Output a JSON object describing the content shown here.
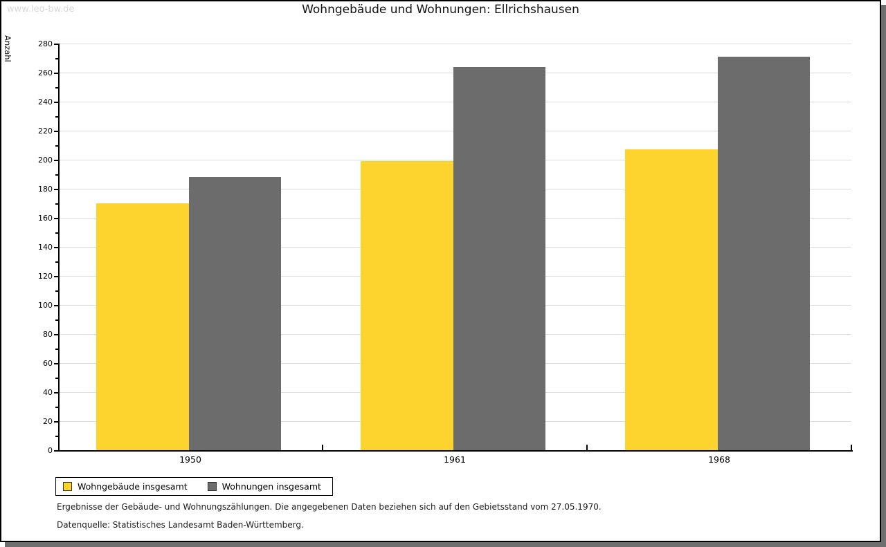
{
  "watermark": "www.leo-bw.de",
  "title": "Wohngebäude und Wohnungen: Ellrichshausen",
  "chart_data": {
    "type": "bar",
    "title": "Wohngebäude und Wohnungen: Ellrichshausen",
    "ylabel": "Anzahl",
    "xlabel": "",
    "categories": [
      "1950",
      "1961",
      "1968"
    ],
    "series": [
      {
        "name": "Wohngebäude insgesamt",
        "color": "#FDD32E",
        "values": [
          170,
          199,
          207
        ]
      },
      {
        "name": "Wohnungen insgesamt",
        "color": "#6C6C6C",
        "values": [
          188,
          264,
          271
        ]
      }
    ],
    "ylim": [
      0,
      280
    ],
    "ytick_step": 20,
    "ytick_minor_step": 10,
    "grid": true,
    "legend_position": "bottom-left"
  },
  "footnotes": {
    "line1": "Ergebnisse der Gebäude- und Wohnungszählungen. Die angegebenen Daten beziehen sich auf den Gebietsstand vom 27.05.1970.",
    "line2": "Datenquelle: Statistisches Landesamt Baden-Württemberg."
  },
  "colors": {
    "series1": "#FDD32E",
    "series2": "#6C6C6C",
    "gridline": "#DCDCDC",
    "shadow": "#6F6F6F",
    "watermark": "#D9D9D9"
  }
}
